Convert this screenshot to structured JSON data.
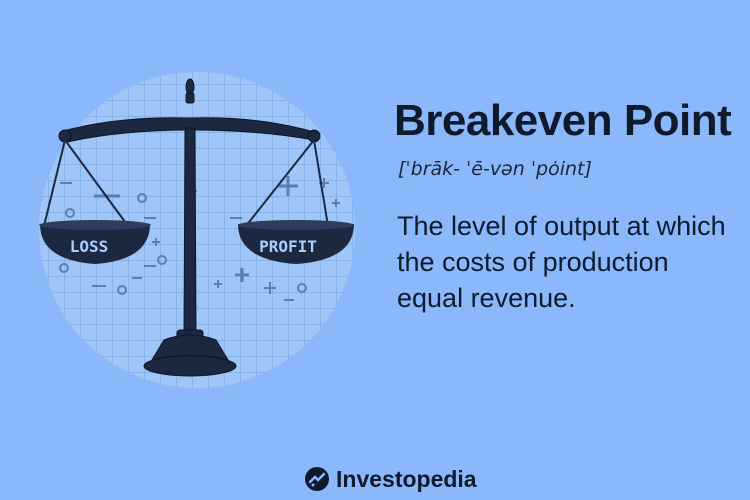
{
  "heading": {
    "title": "Breakeven Point",
    "pronunciation": "[ˈbrāk- ˈē-vən ˈpȯint]"
  },
  "definition": {
    "text": "The level of output at which the costs of production equal revenue."
  },
  "scale": {
    "left_pan_label": "LOSS",
    "right_pan_label": "PROFIT"
  },
  "brand": {
    "name": "Investopedia",
    "icon": "investopedia-logo-icon"
  },
  "colors": {
    "background": "#8bb8fb",
    "circle": "#9ac4f5",
    "ink": "#0f1b2d"
  }
}
